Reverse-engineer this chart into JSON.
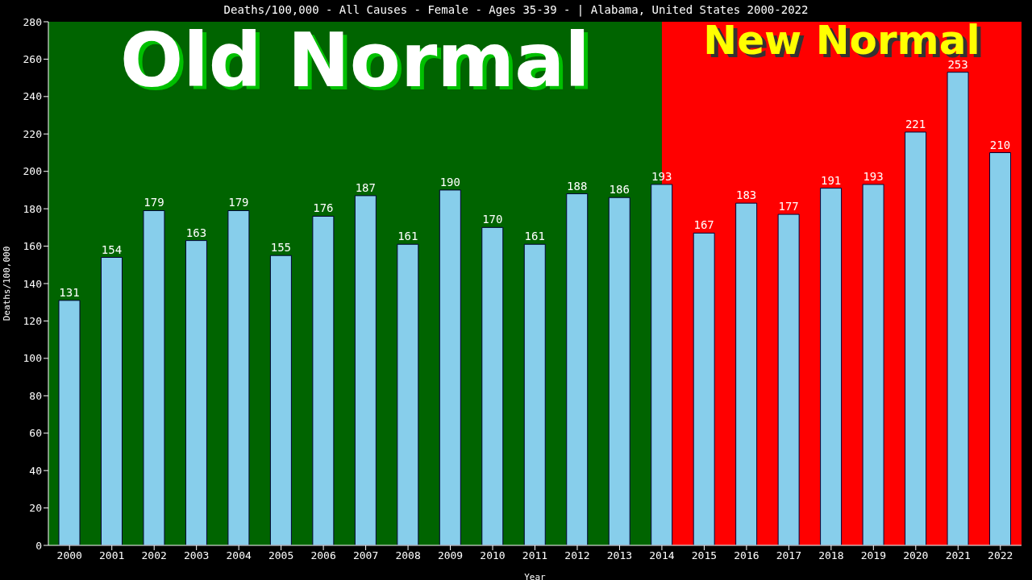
{
  "chart_data": {
    "type": "bar",
    "title": "Deaths/100,000 - All Causes - Female - Ages 35-39 -  | Alabama, United States 2000-2022",
    "xlabel": "Year",
    "ylabel": "Deaths/100,000",
    "categories": [
      "2000",
      "2001",
      "2002",
      "2003",
      "2004",
      "2005",
      "2006",
      "2007",
      "2008",
      "2009",
      "2010",
      "2011",
      "2012",
      "2013",
      "2014",
      "2015",
      "2016",
      "2017",
      "2018",
      "2019",
      "2020",
      "2021",
      "2022"
    ],
    "values": [
      131,
      154,
      179,
      163,
      179,
      155,
      176,
      187,
      161,
      190,
      170,
      161,
      188,
      186,
      193,
      167,
      183,
      177,
      191,
      193,
      221,
      253,
      210
    ],
    "color": "#87ceeb",
    "data_labels": true,
    "ylim": [
      0,
      280
    ],
    "yticks": [
      0,
      20,
      40,
      60,
      80,
      100,
      120,
      140,
      160,
      180,
      200,
      220,
      240,
      260,
      280
    ],
    "grid": false,
    "legend": false,
    "bands": [
      {
        "axis": "x",
        "from": "2000",
        "to": "2014",
        "label": "Old Normal",
        "color": "#006400"
      },
      {
        "axis": "x",
        "from": "2014",
        "to": "2022",
        "label": "New Normal",
        "color": "#ff0000"
      }
    ]
  }
}
